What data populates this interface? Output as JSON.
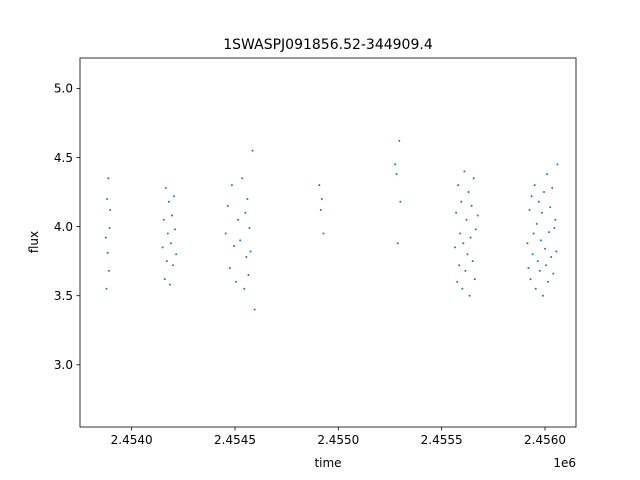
{
  "chart_data": {
    "type": "scatter",
    "title": "1SWASPJ091856.52-344909.4",
    "xlabel": "time",
    "ylabel": "flux",
    "x_offset_label": "1e6",
    "xlim": [
      2.45375,
      2.45615
    ],
    "ylim": [
      2.55,
      5.22
    ],
    "x_ticks": [
      2.454,
      2.4545,
      2.455,
      2.4555,
      2.456
    ],
    "x_tick_labels": [
      "2.4540",
      "2.4545",
      "2.4550",
      "2.4555",
      "2.4560"
    ],
    "y_ticks": [
      3.0,
      3.5,
      4.0,
      4.5,
      5.0
    ],
    "y_tick_labels": [
      "3.0",
      "3.5",
      "4.0",
      "4.5",
      "5.0"
    ],
    "grid": false,
    "marker_color": "#1f77b4",
    "series": [
      {
        "x": [
          2.453875,
          2.453878,
          2.453881,
          2.453884,
          2.453887,
          2.45389,
          2.453893,
          2.453896,
          2.45415,
          2.454155,
          2.45416,
          2.454165,
          2.45417,
          2.454175,
          2.45418,
          2.454185,
          2.45419,
          2.454195,
          2.4542,
          2.454205,
          2.45421,
          2.454215,
          2.454455,
          2.454465,
          2.454475,
          2.454485,
          2.454495,
          2.454505,
          2.454515,
          2.454525,
          2.454535,
          2.454545,
          2.45455,
          2.454555,
          2.45456,
          2.454565,
          2.45457,
          2.454575,
          2.454585,
          2.454595,
          2.454908,
          2.454915,
          2.45492,
          2.454928,
          2.455275,
          2.455282,
          2.455288,
          2.455295,
          2.4553,
          2.455565,
          2.45557,
          2.455575,
          2.45558,
          2.455585,
          2.45559,
          2.455595,
          2.4556,
          2.455605,
          2.45561,
          2.455615,
          2.45562,
          2.455625,
          2.45563,
          2.455635,
          2.45564,
          2.455645,
          2.45565,
          2.455655,
          2.45566,
          2.455665,
          2.455675,
          2.455915,
          2.45592,
          2.455925,
          2.45593,
          2.455935,
          2.45594,
          2.455945,
          2.45595,
          2.455955,
          2.45596,
          2.455965,
          2.45597,
          2.455975,
          2.45598,
          2.455985,
          2.45599,
          2.455995,
          2.456,
          2.456005,
          2.45601,
          2.456015,
          2.45602,
          2.456025,
          2.45603,
          2.456035,
          2.45604,
          2.456045,
          2.45605,
          2.456055,
          2.45606
        ],
        "y": [
          3.92,
          3.55,
          4.2,
          3.81,
          4.35,
          3.68,
          3.99,
          4.12,
          3.85,
          4.05,
          3.62,
          4.28,
          3.75,
          3.95,
          4.18,
          3.58,
          3.88,
          4.08,
          3.72,
          4.22,
          3.98,
          3.8,
          3.95,
          4.15,
          3.7,
          4.3,
          3.86,
          3.6,
          4.05,
          3.9,
          4.35,
          3.55,
          4.1,
          3.78,
          4.2,
          3.65,
          3.99,
          3.82,
          4.55,
          3.4,
          4.3,
          4.12,
          4.2,
          3.95,
          4.45,
          4.38,
          3.88,
          4.62,
          4.18,
          3.85,
          4.1,
          3.6,
          4.3,
          3.72,
          3.95,
          4.18,
          3.55,
          3.88,
          4.4,
          3.68,
          4.05,
          3.8,
          4.25,
          3.5,
          3.92,
          4.15,
          3.75,
          4.35,
          3.62,
          3.98,
          4.08,
          3.88,
          3.7,
          4.12,
          3.62,
          4.22,
          3.8,
          3.95,
          4.3,
          3.55,
          4.02,
          3.75,
          4.18,
          3.68,
          3.9,
          4.1,
          3.5,
          4.25,
          3.84,
          3.72,
          4.38,
          3.6,
          3.96,
          4.14,
          3.78,
          4.28,
          3.66,
          3.99,
          4.05,
          3.82,
          4.45
        ]
      }
    ]
  }
}
